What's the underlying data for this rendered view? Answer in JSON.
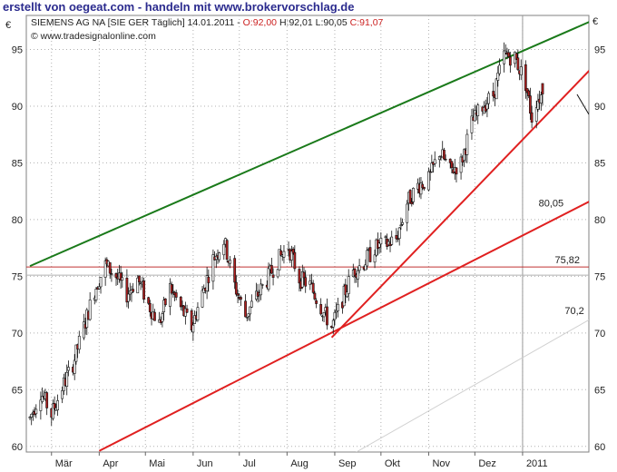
{
  "header": {
    "title": "erstellt von oegeat.com - handeln mit www.brokervorschlag.de"
  },
  "info": {
    "currency": "€",
    "instrument": "SIEMENS AG NA [SIE GER  Täglich] 14.01.2011 -",
    "open": "O:92,00",
    "high": "H:92,01",
    "low": "L:90,05",
    "close": "C:91,07",
    "source": "© www.tradesignalonline.com"
  },
  "colors": {
    "candle_down": "#b02020",
    "candle_up": "#ffffff",
    "trend_green": "#1a7a1a",
    "trend_red": "#e02020",
    "horizontal_line": "#c03030",
    "label_red": "#cc2222",
    "grid": "#b0b0b0"
  },
  "chart_data": {
    "type": "candlestick",
    "title": "SIEMENS AG NA [SIE GER  Täglich] 14.01.2011",
    "xlabel": "",
    "ylabel": "€",
    "ylim": [
      59.5,
      98
    ],
    "y_ticks": [
      60,
      65,
      70,
      75,
      80,
      85,
      90,
      95
    ],
    "x_ticks": [
      "Mär",
      "Apr",
      "Mai",
      "Jun",
      "Jul",
      "Aug",
      "Sep",
      "Okt",
      "Nov",
      "Dez",
      "2011"
    ],
    "grid": true,
    "date_range": [
      "2010-02-15",
      "2011-01-14"
    ],
    "last_bar": {
      "date": "2011-01-14",
      "open": 92.0,
      "high": 92.01,
      "low": 90.05,
      "close": 91.07
    },
    "horizontal_lines": [
      {
        "value": 75.82,
        "label": "75,82",
        "color": "#c03030"
      },
      {
        "value": 75.1,
        "label": "",
        "color": "#b0b0b0"
      }
    ],
    "trendlines": [
      {
        "name": "green-resistance",
        "color": "#1a7a1a",
        "points": [
          [
            "2010-02-15",
            75.9
          ],
          [
            "2011-02-28",
            98.3
          ]
        ]
      },
      {
        "name": "red-support-steep",
        "color": "#e02020",
        "points": [
          [
            "2010-08-30",
            69.6
          ],
          [
            "2011-02-28",
            95.2
          ]
        ]
      },
      {
        "name": "red-support-long",
        "color": "#e02020",
        "points": [
          [
            "2010-04-01",
            59.6
          ],
          [
            "2011-02-28",
            82.6
          ]
        ],
        "label": "80,05"
      },
      {
        "name": "gray-support",
        "color": "#d0d0d0",
        "points": [
          [
            "2010-09-15",
            59.5
          ],
          [
            "2011-02-28",
            72.3
          ]
        ],
        "label": "70,2"
      }
    ],
    "price_path": [
      [
        "2010-02-15",
        62.5
      ],
      [
        "2010-02-22",
        64.8
      ],
      [
        "2010-03-01",
        62.8
      ],
      [
        "2010-03-08",
        65.2
      ],
      [
        "2010-03-15",
        67.3
      ],
      [
        "2010-03-22",
        70.5
      ],
      [
        "2010-03-29",
        73.8
      ],
      [
        "2010-04-05",
        76.0
      ],
      [
        "2010-04-12",
        75.0
      ],
      [
        "2010-04-19",
        73.4
      ],
      [
        "2010-04-26",
        74.8
      ],
      [
        "2010-05-03",
        72.5
      ],
      [
        "2010-05-10",
        70.8
      ],
      [
        "2010-05-17",
        74.0
      ],
      [
        "2010-05-24",
        72.2
      ],
      [
        "2010-05-31",
        70.5
      ],
      [
        "2010-06-07",
        73.5
      ],
      [
        "2010-06-14",
        76.5
      ],
      [
        "2010-06-21",
        78.2
      ],
      [
        "2010-06-28",
        74.2
      ],
      [
        "2010-07-05",
        71.5
      ],
      [
        "2010-07-12",
        73.2
      ],
      [
        "2010-07-19",
        74.7
      ],
      [
        "2010-07-26",
        76.4
      ],
      [
        "2010-08-02",
        77.6
      ],
      [
        "2010-08-09",
        74.8
      ],
      [
        "2010-08-16",
        74.2
      ],
      [
        "2010-08-23",
        72.3
      ],
      [
        "2010-08-30",
        70.5
      ],
      [
        "2010-09-06",
        73.0
      ],
      [
        "2010-09-13",
        75.5
      ],
      [
        "2010-09-20",
        76.2
      ],
      [
        "2010-09-27",
        77.5
      ],
      [
        "2010-10-04",
        77.8
      ],
      [
        "2010-10-11",
        78.3
      ],
      [
        "2010-10-18",
        81.5
      ],
      [
        "2010-10-25",
        83.0
      ],
      [
        "2010-11-01",
        83.5
      ],
      [
        "2010-11-08",
        86.0
      ],
      [
        "2010-11-15",
        84.3
      ],
      [
        "2010-11-22",
        85.0
      ],
      [
        "2010-11-29",
        88.5
      ],
      [
        "2010-12-06",
        90.0
      ],
      [
        "2010-12-13",
        91.0
      ],
      [
        "2010-12-20",
        94.5
      ],
      [
        "2010-12-27",
        94.3
      ],
      [
        "2011-01-03",
        92.0
      ],
      [
        "2011-01-07",
        89.0
      ],
      [
        "2011-01-10",
        90.5
      ],
      [
        "2011-01-14",
        91.07
      ]
    ]
  }
}
